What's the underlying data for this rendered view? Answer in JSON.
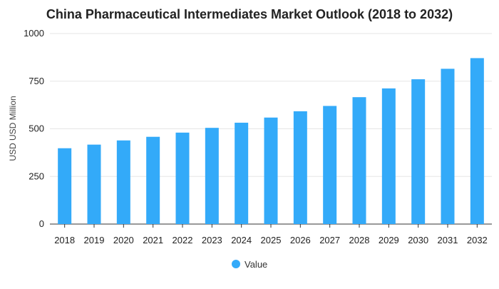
{
  "chart_data": {
    "type": "bar",
    "title": "China Pharmaceutical Intermediates Market Outlook (2018 to 2032)",
    "ylabel": "USD USD Million",
    "xlabel": "",
    "categories": [
      "2018",
      "2019",
      "2020",
      "2021",
      "2022",
      "2023",
      "2024",
      "2025",
      "2026",
      "2027",
      "2028",
      "2029",
      "2030",
      "2031",
      "2032"
    ],
    "series": [
      {
        "name": "Value",
        "values": [
          398,
          417,
          439,
          458,
          480,
          505,
          532,
          559,
          592,
          620,
          666,
          712,
          760,
          815,
          871
        ]
      }
    ],
    "ylim": [
      0,
      1000
    ],
    "yticks": [
      0,
      250,
      500,
      750,
      1000
    ],
    "grid": true,
    "legend": "bottom-center",
    "colors": {
      "bar": "#33aaf9",
      "grid": "#e6e6e6",
      "axis": "#333333",
      "text": "#222222"
    }
  }
}
